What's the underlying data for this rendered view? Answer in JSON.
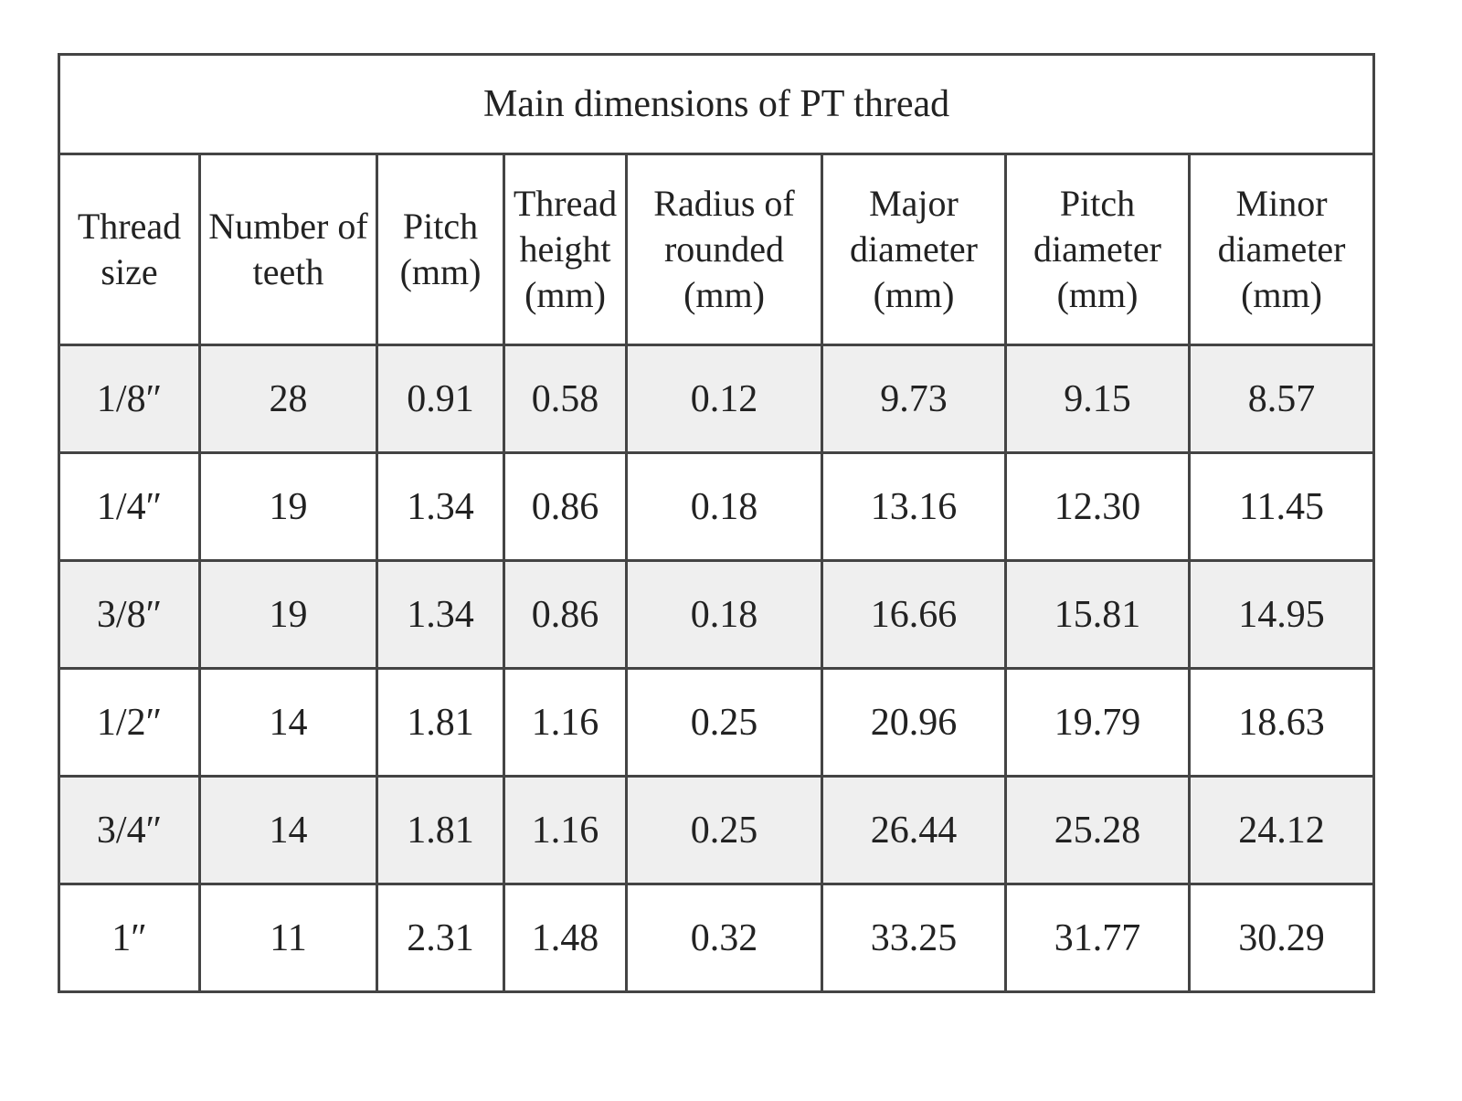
{
  "title": "Main dimensions of PT thread",
  "table": {
    "headers": [
      "Thread size",
      "Number of teeth",
      "Pitch (mm)",
      "Thread height (mm)",
      "Radius of rounded (mm)",
      "Major diameter (mm)",
      "Pitch diameter (mm)",
      "Minor diameter (mm)"
    ],
    "rows": [
      [
        "1/8″",
        "28",
        "0.91",
        "0.58",
        "0.12",
        "9.73",
        "9.15",
        "8.57"
      ],
      [
        "1/4″",
        "19",
        "1.34",
        "0.86",
        "0.18",
        "13.16",
        "12.30",
        "11.45"
      ],
      [
        "3/8″",
        "19",
        "1.34",
        "0.86",
        "0.18",
        "16.66",
        "15.81",
        "14.95"
      ],
      [
        "1/2″",
        "14",
        "1.81",
        "1.16",
        "0.25",
        "20.96",
        "19.79",
        "18.63"
      ],
      [
        "3/4″",
        "14",
        "1.81",
        "1.16",
        "0.25",
        "26.44",
        "25.28",
        "24.12"
      ],
      [
        "1″",
        "11",
        "2.31",
        "1.48",
        "0.32",
        "33.25",
        "31.77",
        "30.29"
      ]
    ]
  }
}
